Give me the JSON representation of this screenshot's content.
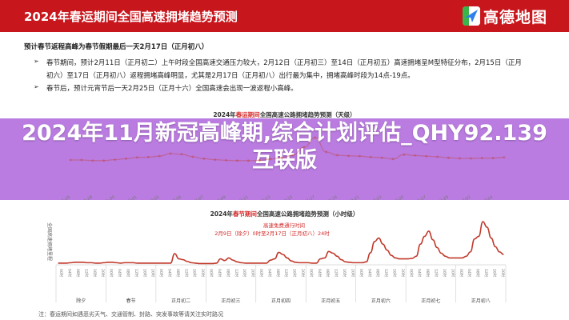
{
  "header": {
    "title": "2024年春运期间全国高速拥堵趋势预测",
    "logo_text": "高德地图",
    "brand_color": "#c8161d",
    "logo_icon": "paper-plane-icon"
  },
  "intro": {
    "lead": "预计春节返程高峰为春节假期最后一天2月17日（正月初八）",
    "bullets": [
      "春节期间，预计2月11日（正月初二）上午时段全国高速交通压力较大，2月12日（正月初三）至14日（正月初五）高速拥堵呈M型特征分布，2月15日（正月",
      "初六）至17日（正月初八）返程拥堵高峰明显，尤其是2月17日（正月初八）出行最为集中，拥堵高峰时段为14点-19点。",
      "春节后，预计元宵节后一天2月25日（正月十六）全国高速会出现一波返程小高峰。"
    ],
    "bullet_icon": "arrow-bullet-icon"
  },
  "overlay": {
    "text": "2024年11月新冠高峰期,综合计划评估_QHY92.139互联版",
    "color": "#b26ede"
  },
  "note": "注：春运期间如遇恶劣天气、交通管制、封路、突发事故等请关注实时路况",
  "chart_data": [
    {
      "type": "line",
      "title_pre": "2024年",
      "title_red": "春运期间",
      "title_post": "全国高速公路拥堵趋势预测（天级）",
      "x_tick_labels": [
        "2024-01-26",
        "2024-01-28",
        "2024-01-30",
        "2024-02-01",
        "2024-02-03",
        "2024-02-05",
        "2024-02-07",
        "2024-02-09",
        "2024-02-11",
        "2024-02-13",
        "2024-02-15",
        "2024-02-17",
        "2024-02-19",
        "2024-02-21",
        "2024-02-23",
        "2024-02-25",
        "2024-02-27",
        "2024-02-29",
        "2024-03-02",
        "2024-03-04"
      ],
      "x": [
        "01-26",
        "01-27",
        "01-28",
        "01-29",
        "01-30",
        "01-31",
        "02-01",
        "02-02",
        "02-03",
        "02-04",
        "02-05",
        "02-06",
        "02-07",
        "02-08",
        "02-09",
        "02-10",
        "02-11",
        "02-12",
        "02-13",
        "02-14",
        "02-15",
        "02-16",
        "02-17",
        "02-18",
        "02-19",
        "02-20",
        "02-21",
        "02-22",
        "02-23",
        "02-24",
        "02-25",
        "02-26",
        "02-27",
        "02-28",
        "02-29",
        "03-01",
        "03-02",
        "03-03",
        "03-04",
        "03-05"
      ],
      "values": [
        30,
        30,
        28,
        28,
        31,
        34,
        38,
        39,
        42,
        50,
        48,
        40,
        34,
        31,
        29,
        28,
        28,
        29,
        33,
        37,
        45,
        70,
        100,
        55,
        45,
        43,
        42,
        39,
        37,
        33,
        47,
        44,
        42,
        40,
        37,
        35,
        35,
        36,
        36,
        38
      ],
      "color": "#c0392b",
      "markers": true,
      "grid": false
    },
    {
      "type": "line",
      "title_pre": "2024年",
      "title_red": "春节期间",
      "title_post": "全国高速公路拥堵趋势预测（小时级）",
      "ylabel": "全国高速拥堵里程",
      "annotation": {
        "line1": "高速免费通行时间",
        "line2": "2月9日（除夕）0时至2月17日（正月初八）24时"
      },
      "days": [
        "除夕",
        "春节",
        "正月初二",
        "正月初三",
        "正月初四",
        "正月初五",
        "正月初六",
        "正月初七",
        "正月初八"
      ],
      "hour_ticks": [
        "00时",
        "04时",
        "08时",
        "12时",
        "16时",
        "20时"
      ],
      "hours_per_value": 2,
      "values": [
        2,
        2,
        2,
        3,
        4,
        4,
        4,
        3,
        3,
        2,
        2,
        3,
        4,
        4,
        3,
        2,
        3,
        3,
        3,
        2,
        2,
        2,
        2,
        2,
        2,
        2,
        2,
        2,
        24,
        12,
        10,
        6,
        3,
        2,
        1,
        1,
        1,
        1,
        2,
        12,
        8,
        14,
        9,
        5,
        3,
        2,
        2,
        2,
        2,
        2,
        2,
        9,
        12,
        27,
        22,
        14,
        7,
        4,
        3,
        3,
        3,
        2,
        2,
        12,
        14,
        29,
        25,
        18,
        10,
        5,
        4,
        3,
        3,
        3,
        5,
        26,
        52,
        60,
        46,
        32,
        20,
        14,
        12,
        12,
        12,
        13,
        18,
        46,
        64,
        76,
        56,
        38,
        25,
        18,
        14,
        14,
        14,
        14,
        18,
        28,
        58,
        64,
        98,
        85,
        60,
        40,
        28,
        22
      ],
      "color": "#c0392b",
      "grid": false
    }
  ]
}
